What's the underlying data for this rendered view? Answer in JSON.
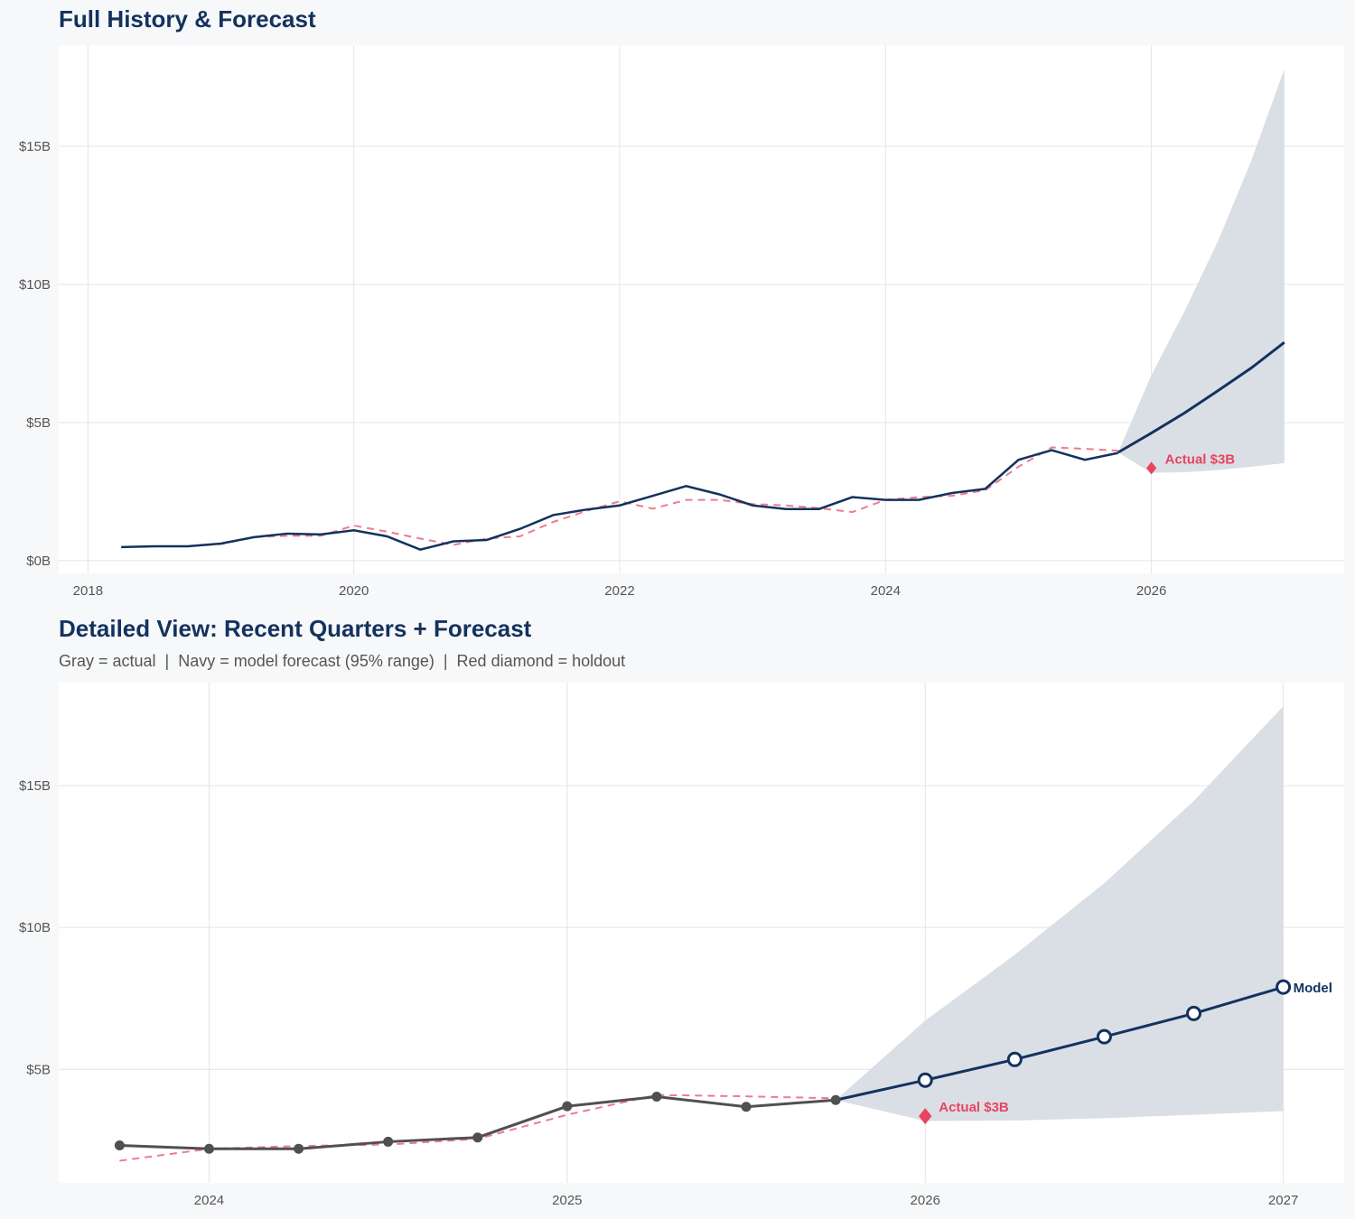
{
  "colors": {
    "navy": "#13325e",
    "gray": "#505050",
    "fitted": "#ef7b8e",
    "holdout": "#e8445f",
    "band": "#dadfe5",
    "grid": "#e4e4e4"
  },
  "chart_data": [
    {
      "type": "line",
      "title": "Full History & Forecast",
      "xlim": [
        2017.78,
        2027.45
      ],
      "ylim": [
        -0.46,
        18.66
      ],
      "xticks": [
        2018,
        2020,
        2022,
        2024,
        2026
      ],
      "xtick_labels": [
        "2018",
        "2020",
        "2022",
        "2024",
        "2026"
      ],
      "yticks": [
        0,
        5,
        10,
        15
      ],
      "ytick_labels": [
        "$0B",
        "$5B",
        "$10B",
        "$15B"
      ],
      "grid": true,
      "actual": {
        "x": [
          2018.25,
          2018.5,
          2018.75,
          2019.0,
          2019.25,
          2019.5,
          2019.75,
          2020.0,
          2020.25,
          2020.5,
          2020.75,
          2021.0,
          2021.25,
          2021.5,
          2021.75,
          2022.0,
          2022.25,
          2022.5,
          2022.75,
          2023.0,
          2023.25,
          2023.5,
          2023.75,
          2024.0,
          2024.25,
          2024.5,
          2024.75,
          2025.0,
          2025.25,
          2025.5,
          2025.75
        ],
        "y": [
          0.49,
          0.52,
          0.52,
          0.62,
          0.85,
          0.98,
          0.95,
          1.1,
          0.88,
          0.4,
          0.7,
          0.75,
          1.15,
          1.65,
          1.85,
          2.0,
          2.35,
          2.7,
          2.4,
          2.0,
          1.87,
          1.87,
          2.3,
          2.2,
          2.2,
          2.45,
          2.6,
          3.65,
          4.0,
          3.65,
          3.9
        ]
      },
      "fitted": {
        "x": [
          2018.5,
          2018.75,
          2019.0,
          2019.25,
          2019.5,
          2019.75,
          2020.0,
          2020.25,
          2020.5,
          2020.75,
          2021.0,
          2021.25,
          2021.5,
          2021.75,
          2022.0,
          2022.25,
          2022.5,
          2022.75,
          2023.0,
          2023.25,
          2023.5,
          2023.75,
          2024.0,
          2024.25,
          2024.5,
          2024.75,
          2025.0,
          2025.25,
          2025.5,
          2025.75
        ],
        "y": [
          0.52,
          0.52,
          0.6,
          0.85,
          0.9,
          0.9,
          1.27,
          1.05,
          0.8,
          0.57,
          0.8,
          0.88,
          1.4,
          1.8,
          2.15,
          1.88,
          2.2,
          2.2,
          2.05,
          2.0,
          1.9,
          1.76,
          2.2,
          2.3,
          2.35,
          2.55,
          3.4,
          4.1,
          4.05,
          3.98
        ]
      },
      "forecast": {
        "x": [
          2025.75,
          2026.0,
          2026.25,
          2026.5,
          2026.75,
          2027.0
        ],
        "y": [
          3.92,
          4.62,
          5.35,
          6.15,
          6.97,
          7.9
        ],
        "lower": [
          3.92,
          3.18,
          3.2,
          3.28,
          3.4,
          3.53
        ],
        "upper": [
          3.92,
          6.72,
          9.04,
          11.56,
          14.46,
          17.8
        ]
      },
      "holdout": {
        "x": 2026.0,
        "y": 3.35,
        "label": "Actual $3B"
      }
    },
    {
      "type": "line",
      "title": "Detailed View: Recent Quarters + Forecast",
      "subtitle": "Gray = actual  |  Navy = model forecast (95% range)  |  Red diamond = holdout",
      "xlim": [
        2023.58,
        2027.17
      ],
      "ylim": [
        1.0,
        18.63
      ],
      "xticks": [
        2024,
        2025,
        2026,
        2027
      ],
      "xtick_labels": [
        "2024",
        "2025",
        "2026",
        "2027"
      ],
      "yticks": [
        5,
        10,
        15
      ],
      "ytick_labels": [
        "$5B",
        "$10B",
        "$15B"
      ],
      "grid": true,
      "actual": {
        "x": [
          2023.75,
          2024.0,
          2024.25,
          2024.5,
          2024.75,
          2025.0,
          2025.25,
          2025.5,
          2025.75
        ],
        "y": [
          2.32,
          2.2,
          2.2,
          2.45,
          2.6,
          3.7,
          4.04,
          3.68,
          3.92
        ]
      },
      "fitted": {
        "x": [
          2023.75,
          2024.0,
          2024.25,
          2024.5,
          2024.75,
          2025.0,
          2025.25,
          2025.5,
          2025.75
        ],
        "y": [
          1.78,
          2.2,
          2.3,
          2.35,
          2.55,
          3.4,
          4.1,
          4.05,
          3.98
        ]
      },
      "forecast": {
        "x": [
          2025.75,
          2026.0,
          2026.25,
          2026.5,
          2026.75,
          2027.0
        ],
        "y": [
          3.92,
          4.62,
          5.35,
          6.15,
          6.97,
          7.9
        ],
        "lower": [
          3.92,
          3.18,
          3.2,
          3.28,
          3.4,
          3.53
        ],
        "upper": [
          3.92,
          6.72,
          9.04,
          11.56,
          14.46,
          17.8
        ],
        "label": "Model"
      },
      "holdout": {
        "x": 2026.0,
        "y": 3.35,
        "label": "Actual $3B"
      }
    }
  ]
}
